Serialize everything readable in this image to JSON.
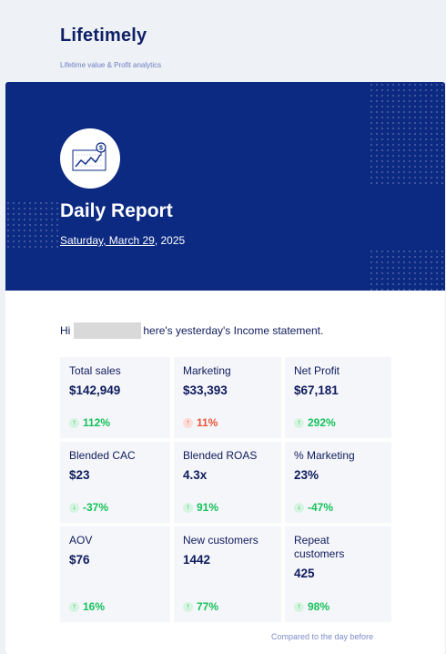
{
  "brand": {
    "name": "Lifetimely",
    "tagline": "Lifetime value & Profit analytics"
  },
  "hero": {
    "title": "Daily Report",
    "date_underlined": "Saturday, March 29",
    "date_rest": ", 2025"
  },
  "greeting": {
    "prefix": "Hi",
    "suffix": "here's yesterday's Income statement."
  },
  "metrics": [
    {
      "label": "Total sales",
      "value": "$142,949",
      "change": "112%",
      "direction": "up",
      "color": "#16c25a"
    },
    {
      "label": "Marketing",
      "value": "$33,393",
      "change": "11%",
      "direction": "up",
      "color": "#e8553d"
    },
    {
      "label": "Net Profit",
      "value": "$67,181",
      "change": "292%",
      "direction": "up",
      "color": "#16c25a"
    },
    {
      "label": "Blended CAC",
      "value": "$23",
      "change": "-37%",
      "direction": "down",
      "color": "#16c25a"
    },
    {
      "label": "Blended ROAS",
      "value": "4.3x",
      "change": "91%",
      "direction": "up",
      "color": "#16c25a"
    },
    {
      "label": "% Marketing",
      "value": "23%",
      "change": "-47%",
      "direction": "down",
      "color": "#16c25a"
    },
    {
      "label": "AOV",
      "value": "$76",
      "change": "16%",
      "direction": "up",
      "color": "#16c25a"
    },
    {
      "label": "New customers",
      "value": "1442",
      "change": "77%",
      "direction": "up",
      "color": "#16c25a"
    },
    {
      "label": "Repeat customers",
      "value": "425",
      "change": "98%",
      "direction": "up",
      "color": "#16c25a"
    }
  ],
  "footnote": "Compared to the day before",
  "colors": {
    "hero_bg": "#0c2a82",
    "positive": "#16c25a",
    "negative": "#e8553d",
    "brand_text": "#0f1f66"
  },
  "icons": {
    "logo": "chart-with-dollar-icon",
    "arrow_up": "arrow-up-icon",
    "arrow_down": "arrow-down-icon"
  }
}
